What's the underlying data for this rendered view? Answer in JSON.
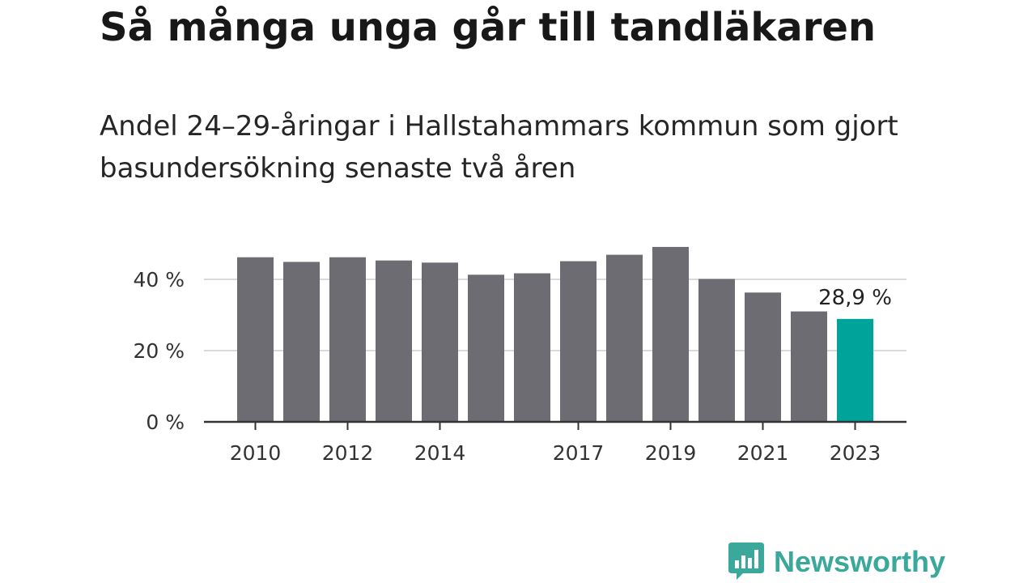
{
  "title": "Så många unga går till tandläkaren",
  "subtitle": "Andel 24–29-åringar i Hallstahammars kommun som gjort basundersökning senaste två åren",
  "brand": {
    "name": "Newsworthy",
    "color": "#3aa89a"
  },
  "chart_data": {
    "type": "bar",
    "categories": [
      "2010",
      "2011",
      "2012",
      "2013",
      "2014",
      "2015",
      "2016",
      "2017",
      "2018",
      "2019",
      "2020",
      "2021",
      "2022",
      "2023"
    ],
    "values": [
      46.2,
      44.9,
      46.2,
      45.3,
      44.7,
      41.3,
      41.7,
      45.1,
      46.9,
      49.1,
      40.1,
      36.3,
      31.0,
      28.9
    ],
    "x_tick_labels": [
      "2010",
      "2012",
      "2014",
      "2017",
      "2019",
      "2021",
      "2023"
    ],
    "y_ticks": [
      0,
      20,
      40
    ],
    "y_tick_labels": [
      "0 %",
      "20 %",
      "40 %"
    ],
    "ylim": [
      0,
      50
    ],
    "grid": true,
    "highlight_index": 13,
    "highlight_label": "28,9 %",
    "colors": {
      "bar": "#6d6c73",
      "highlight": "#00a39a",
      "axis": "#333333",
      "grid": "#d9d9d9",
      "text": "#333333"
    },
    "title": "",
    "xlabel": "",
    "ylabel": ""
  }
}
